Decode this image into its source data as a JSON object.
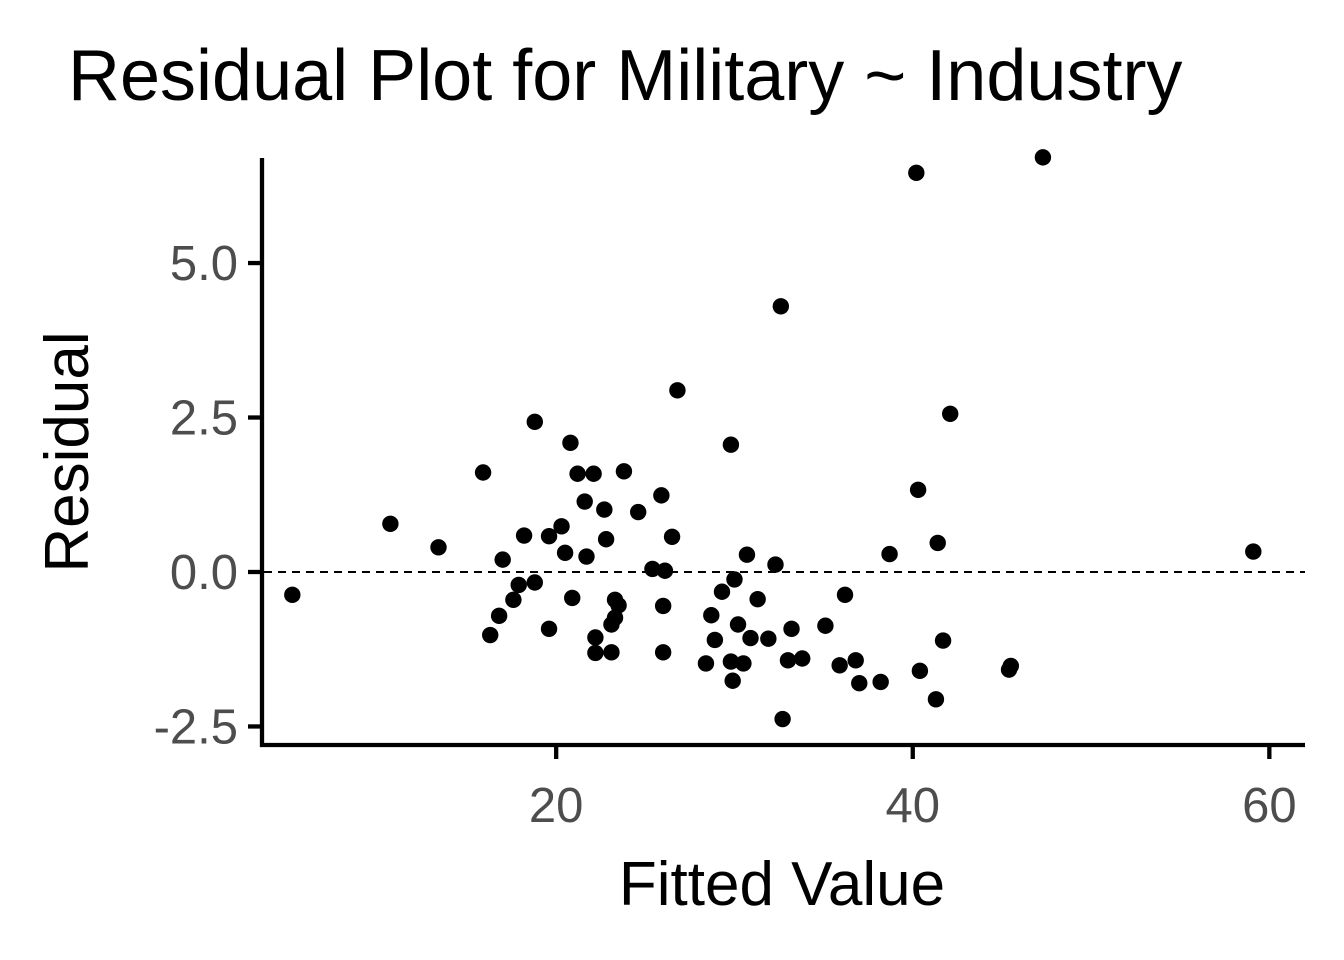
{
  "chart_data": {
    "type": "scatter",
    "title": "Residual Plot for Military ~ Industry",
    "xlabel": "Fitted Value",
    "ylabel": "Residual",
    "xlim": [
      3.5,
      62.0
    ],
    "ylim": [
      -2.8,
      6.7
    ],
    "x_ticks": [
      20,
      40,
      60
    ],
    "x_tick_labels": [
      "20",
      "40",
      "60"
    ],
    "y_ticks": [
      -2.5,
      0.0,
      2.5,
      5.0
    ],
    "y_tick_labels": [
      "-2.5",
      "0.0",
      "2.5",
      "5.0"
    ],
    "reference_line": {
      "y": 0,
      "style": "dashed"
    },
    "grid": false,
    "point_color": "#000000",
    "points": [
      [
        5.2,
        -0.37
      ],
      [
        10.7,
        0.78
      ],
      [
        13.4,
        0.4
      ],
      [
        15.9,
        1.61
      ],
      [
        16.3,
        -1.02
      ],
      [
        16.8,
        -0.71
      ],
      [
        17.0,
        0.2
      ],
      [
        17.6,
        -0.45
      ],
      [
        17.9,
        -0.21
      ],
      [
        18.2,
        0.59
      ],
      [
        18.8,
        -0.17
      ],
      [
        18.8,
        2.43
      ],
      [
        19.6,
        0.58
      ],
      [
        19.6,
        -0.92
      ],
      [
        20.3,
        0.74
      ],
      [
        20.5,
        0.31
      ],
      [
        20.8,
        2.09
      ],
      [
        20.9,
        -0.42
      ],
      [
        21.2,
        1.59
      ],
      [
        21.6,
        1.14
      ],
      [
        21.7,
        0.25
      ],
      [
        22.1,
        1.59
      ],
      [
        22.2,
        -1.06
      ],
      [
        22.2,
        -1.31
      ],
      [
        22.7,
        1.01
      ],
      [
        22.8,
        0.53
      ],
      [
        23.1,
        -0.85
      ],
      [
        23.1,
        -1.3
      ],
      [
        23.3,
        -0.45
      ],
      [
        23.3,
        -0.74
      ],
      [
        23.5,
        -0.54
      ],
      [
        23.8,
        1.63
      ],
      [
        24.6,
        0.97
      ],
      [
        25.4,
        0.05
      ],
      [
        25.9,
        1.24
      ],
      [
        26.0,
        -1.3
      ],
      [
        26.0,
        -0.55
      ],
      [
        26.1,
        0.02
      ],
      [
        26.5,
        0.57
      ],
      [
        26.8,
        2.94
      ],
      [
        28.4,
        -1.48
      ],
      [
        28.7,
        -0.7
      ],
      [
        28.9,
        -1.1
      ],
      [
        29.3,
        -0.32
      ],
      [
        29.8,
        2.06
      ],
      [
        29.8,
        -1.45
      ],
      [
        29.9,
        -1.76
      ],
      [
        30.0,
        -0.12
      ],
      [
        30.2,
        -0.85
      ],
      [
        30.5,
        -1.48
      ],
      [
        30.7,
        0.28
      ],
      [
        30.9,
        -1.07
      ],
      [
        31.3,
        -0.44
      ],
      [
        31.9,
        -1.08
      ],
      [
        32.3,
        0.12
      ],
      [
        32.6,
        4.3
      ],
      [
        32.7,
        -2.38
      ],
      [
        33.0,
        -1.43
      ],
      [
        33.2,
        -0.92
      ],
      [
        33.8,
        -1.4
      ],
      [
        35.1,
        -0.87
      ],
      [
        35.9,
        -1.51
      ],
      [
        36.2,
        -0.37
      ],
      [
        36.8,
        -1.43
      ],
      [
        37.0,
        -1.8
      ],
      [
        38.2,
        -1.78
      ],
      [
        38.7,
        0.29
      ],
      [
        40.2,
        6.46
      ],
      [
        40.3,
        1.33
      ],
      [
        40.4,
        -1.6
      ],
      [
        41.3,
        -2.06
      ],
      [
        41.4,
        0.47
      ],
      [
        41.7,
        -1.11
      ],
      [
        42.1,
        2.56
      ],
      [
        45.4,
        -1.58
      ],
      [
        45.5,
        -1.52
      ],
      [
        47.3,
        6.71
      ],
      [
        59.1,
        0.33
      ]
    ]
  }
}
